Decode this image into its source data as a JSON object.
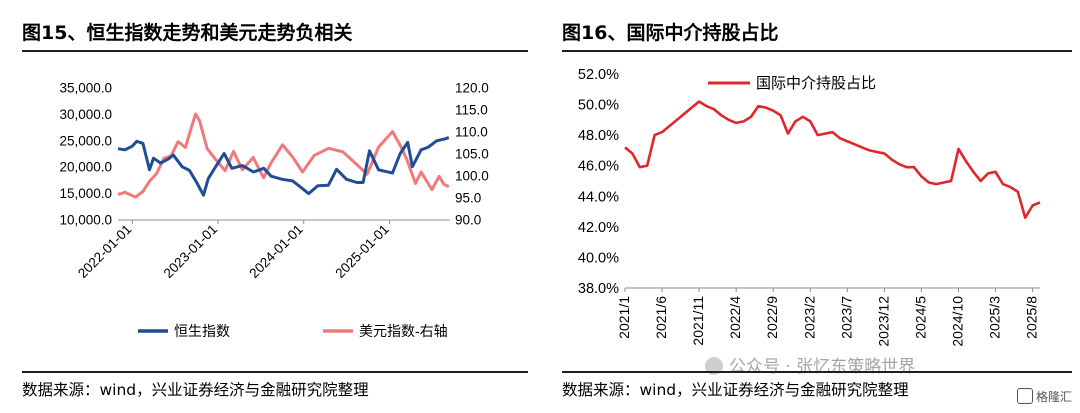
{
  "left_panel": {
    "title": "图15、恒生指数走势和美元走势负相关",
    "source": "数据来源：wind，兴业证券经济与金融研究院整理"
  },
  "right_panel": {
    "title": "图16、国际中介持股占比",
    "source": "数据来源：wind，兴业证券经济与金融研究院整理",
    "watermark": "公众号 · 张忆东策略世界"
  },
  "brand": "格隆汇",
  "colors": {
    "hsi": "#1f4e96",
    "usd": "#f07a7a",
    "intl": "#e0262b"
  },
  "chart_data": [
    {
      "type": "line",
      "dual_axis": true,
      "title": "",
      "x_ticks": [
        "2022-01-01",
        "2023-01-01",
        "2024-01-01",
        "2025-01-01"
      ],
      "x_range": [
        "2021-11-01",
        "2025-09-15"
      ],
      "y_left": {
        "ticks": [
          "35,000.0",
          "30,000.0",
          "25,000.0",
          "20,000.0",
          "15,000.0",
          "10,000.0"
        ],
        "ylim": [
          10000,
          35000
        ]
      },
      "y_right": {
        "ticks": [
          "120.0",
          "115.0",
          "110.0",
          "105.0",
          "100.0",
          "95.0",
          "90.0"
        ],
        "ylim": [
          90,
          120
        ]
      },
      "legend_position": "bottom",
      "series": [
        {
          "name": "恒生指数",
          "axis": "left",
          "color": "#1f4e96",
          "points": [
            [
              "2021-11-01",
              23500
            ],
            [
              "2021-12-01",
              23300
            ],
            [
              "2022-01-01",
              24000
            ],
            [
              "2022-01-20",
              24900
            ],
            [
              "2022-02-15",
              24500
            ],
            [
              "2022-03-15",
              19500
            ],
            [
              "2022-04-01",
              21700
            ],
            [
              "2022-05-01",
              20800
            ],
            [
              "2022-06-01",
              21500
            ],
            [
              "2022-06-25",
              22300
            ],
            [
              "2022-08-01",
              20100
            ],
            [
              "2022-09-01",
              19400
            ],
            [
              "2022-10-01",
              17200
            ],
            [
              "2022-10-31",
              14700
            ],
            [
              "2022-11-20",
              17800
            ],
            [
              "2022-12-15",
              19600
            ],
            [
              "2023-01-27",
              22600
            ],
            [
              "2023-03-01",
              19800
            ],
            [
              "2023-04-15",
              20300
            ],
            [
              "2023-06-01",
              19100
            ],
            [
              "2023-07-15",
              19800
            ],
            [
              "2023-08-15",
              18300
            ],
            [
              "2023-10-01",
              17700
            ],
            [
              "2023-11-15",
              17400
            ],
            [
              "2024-01-22",
              15000
            ],
            [
              "2024-03-01",
              16500
            ],
            [
              "2024-04-15",
              16600
            ],
            [
              "2024-05-20",
              19600
            ],
            [
              "2024-07-01",
              17700
            ],
            [
              "2024-08-15",
              17100
            ],
            [
              "2024-09-10",
              17100
            ],
            [
              "2024-10-07",
              23100
            ],
            [
              "2024-11-15",
              19500
            ],
            [
              "2025-01-13",
              18900
            ],
            [
              "2025-02-15",
              22600
            ],
            [
              "2025-03-19",
              24700
            ],
            [
              "2025-04-08",
              20100
            ],
            [
              "2025-05-15",
              23300
            ],
            [
              "2025-06-15",
              23800
            ],
            [
              "2025-07-20",
              25000
            ],
            [
              "2025-08-20",
              25300
            ],
            [
              "2025-09-10",
              25600
            ]
          ]
        },
        {
          "name": "美元指数-右轴",
          "axis": "right",
          "color": "#f07a7a",
          "points": [
            [
              "2021-11-01",
              95.8
            ],
            [
              "2021-12-01",
              96.3
            ],
            [
              "2022-01-15",
              95.2
            ],
            [
              "2022-02-15",
              96.5
            ],
            [
              "2022-03-15",
              98.8
            ],
            [
              "2022-04-15",
              100.6
            ],
            [
              "2022-05-15",
              104.0
            ],
            [
              "2022-06-15",
              104.6
            ],
            [
              "2022-07-15",
              107.8
            ],
            [
              "2022-08-15",
              106.5
            ],
            [
              "2022-09-27",
              114.1
            ],
            [
              "2022-10-15",
              112.5
            ],
            [
              "2022-11-15",
              106.3
            ],
            [
              "2022-12-15",
              104.2
            ],
            [
              "2023-01-31",
              101.2
            ],
            [
              "2023-03-08",
              105.6
            ],
            [
              "2023-04-15",
              101.4
            ],
            [
              "2023-05-31",
              104.2
            ],
            [
              "2023-07-14",
              99.6
            ],
            [
              "2023-08-15",
              103.0
            ],
            [
              "2023-10-03",
              107.1
            ],
            [
              "2023-11-15",
              104.3
            ],
            [
              "2023-12-27",
              100.9
            ],
            [
              "2024-02-15",
              104.7
            ],
            [
              "2024-04-16",
              106.3
            ],
            [
              "2024-06-15",
              105.5
            ],
            [
              "2024-07-15",
              104.1
            ],
            [
              "2024-09-27",
              100.4
            ],
            [
              "2024-11-15",
              106.6
            ],
            [
              "2025-01-13",
              110.1
            ],
            [
              "2025-02-15",
              107.0
            ],
            [
              "2025-03-15",
              103.8
            ],
            [
              "2025-04-21",
              98.3
            ],
            [
              "2025-05-15",
              100.9
            ],
            [
              "2025-06-30",
              96.9
            ],
            [
              "2025-07-31",
              99.9
            ],
            [
              "2025-08-20",
              98.1
            ],
            [
              "2025-09-10",
              97.6
            ]
          ]
        }
      ]
    },
    {
      "type": "line",
      "title": "",
      "x_ticks": [
        "2021/1",
        "2021/6",
        "2021/11",
        "2022/4",
        "2022/9",
        "2023/2",
        "2023/7",
        "2023/12",
        "2024/5",
        "2024/10",
        "2025/3",
        "2025/8"
      ],
      "y_ticks": [
        "52.0%",
        "50.0%",
        "48.0%",
        "46.0%",
        "44.0%",
        "42.0%",
        "40.0%",
        "38.0%"
      ],
      "ylim": [
        38,
        52
      ],
      "legend_position": "top-left",
      "series": [
        {
          "name": "国际中介持股占比",
          "color": "#e0262b",
          "points": [
            [
              "2021/1",
              47.2
            ],
            [
              "2021/2",
              46.8
            ],
            [
              "2021/3",
              45.9
            ],
            [
              "2021/4",
              46.0
            ],
            [
              "2021/5",
              48.0
            ],
            [
              "2021/6",
              48.2
            ],
            [
              "2021/7",
              48.6
            ],
            [
              "2021/8",
              49.0
            ],
            [
              "2021/9",
              49.4
            ],
            [
              "2021/10",
              49.8
            ],
            [
              "2021/11",
              50.2
            ],
            [
              "2021/12",
              49.9
            ],
            [
              "2022/1",
              49.7
            ],
            [
              "2022/2",
              49.3
            ],
            [
              "2022/3",
              49.0
            ],
            [
              "2022/4",
              48.8
            ],
            [
              "2022/5",
              48.9
            ],
            [
              "2022/6",
              49.2
            ],
            [
              "2022/7",
              49.9
            ],
            [
              "2022/8",
              49.8
            ],
            [
              "2022/9",
              49.6
            ],
            [
              "2022/10",
              49.3
            ],
            [
              "2022/11",
              48.1
            ],
            [
              "2022/12",
              48.9
            ],
            [
              "2023/1",
              49.2
            ],
            [
              "2023/2",
              48.9
            ],
            [
              "2023/3",
              48.0
            ],
            [
              "2023/4",
              48.1
            ],
            [
              "2023/5",
              48.2
            ],
            [
              "2023/6",
              47.8
            ],
            [
              "2023/7",
              47.6
            ],
            [
              "2023/8",
              47.4
            ],
            [
              "2023/9",
              47.2
            ],
            [
              "2023/10",
              47.0
            ],
            [
              "2023/11",
              46.9
            ],
            [
              "2023/12",
              46.8
            ],
            [
              "2024/1",
              46.4
            ],
            [
              "2024/2",
              46.1
            ],
            [
              "2024/3",
              45.9
            ],
            [
              "2024/4",
              45.9
            ],
            [
              "2024/5",
              45.3
            ],
            [
              "2024/6",
              44.9
            ],
            [
              "2024/7",
              44.8
            ],
            [
              "2024/8",
              44.9
            ],
            [
              "2024/9",
              45.0
            ],
            [
              "2024/10",
              47.1
            ],
            [
              "2024/11",
              46.3
            ],
            [
              "2024/12",
              45.6
            ],
            [
              "2025/1",
              45.0
            ],
            [
              "2025/2",
              45.5
            ],
            [
              "2025/3",
              45.6
            ],
            [
              "2025/4",
              44.8
            ],
            [
              "2025/5",
              44.6
            ],
            [
              "2025/6",
              44.3
            ],
            [
              "2025/7",
              42.6
            ],
            [
              "2025/8",
              43.4
            ],
            [
              "2025/9",
              43.6
            ]
          ]
        }
      ]
    }
  ]
}
